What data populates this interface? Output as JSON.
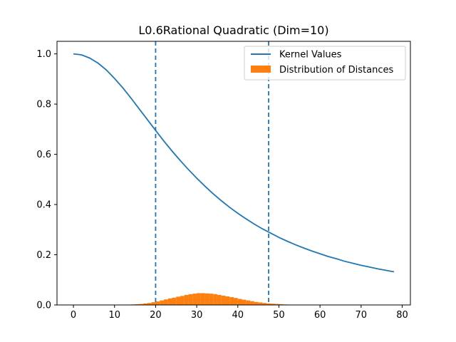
{
  "chart_data": {
    "type": "line",
    "title": "L0.6Rational Quadratic (Dim=10)",
    "xlabel": "",
    "ylabel": "",
    "xlim": [
      -4,
      82
    ],
    "ylim": [
      0,
      1.05
    ],
    "x_ticks": [
      0,
      10,
      20,
      30,
      40,
      50,
      60,
      70,
      80
    ],
    "y_ticks": [
      0.0,
      0.2,
      0.4,
      0.6,
      0.8,
      1.0
    ],
    "grid": false,
    "legend_position": "top-right",
    "series": [
      {
        "name": "Kernel Values",
        "kind": "line",
        "color": "#1f77b4",
        "x": [
          0,
          2,
          4,
          6,
          8,
          10,
          12,
          14,
          16,
          18,
          20,
          22,
          24,
          26,
          28,
          30,
          32,
          34,
          36,
          38,
          40,
          42,
          44,
          46,
          48,
          50,
          52,
          54,
          56,
          58,
          60,
          62,
          64,
          66,
          68,
          70,
          72,
          74,
          76,
          78
        ],
        "values": [
          1.0,
          0.996,
          0.983,
          0.963,
          0.936,
          0.902,
          0.865,
          0.824,
          0.781,
          0.738,
          0.695,
          0.653,
          0.613,
          0.575,
          0.539,
          0.505,
          0.473,
          0.443,
          0.415,
          0.389,
          0.365,
          0.343,
          0.322,
          0.303,
          0.286,
          0.269,
          0.254,
          0.24,
          0.227,
          0.215,
          0.204,
          0.193,
          0.184,
          0.174,
          0.166,
          0.158,
          0.151,
          0.144,
          0.138,
          0.132
        ]
      },
      {
        "name": "Distribution of Distances",
        "kind": "histogram",
        "color": "#ff7f0e",
        "bin_width": 1.0,
        "bin_starts": [
          13,
          14,
          15,
          16,
          17,
          18,
          19,
          20,
          21,
          22,
          23,
          24,
          25,
          26,
          27,
          28,
          29,
          30,
          31,
          32,
          33,
          34,
          35,
          36,
          37,
          38,
          39,
          40,
          41,
          42,
          43,
          44,
          45,
          46,
          47,
          48,
          49,
          50,
          51,
          52,
          53,
          54
        ],
        "values": [
          0.001,
          0.002,
          0.003,
          0.004,
          0.006,
          0.008,
          0.011,
          0.014,
          0.018,
          0.022,
          0.026,
          0.029,
          0.033,
          0.036,
          0.04,
          0.043,
          0.045,
          0.047,
          0.047,
          0.046,
          0.045,
          0.043,
          0.04,
          0.037,
          0.034,
          0.031,
          0.028,
          0.024,
          0.021,
          0.018,
          0.015,
          0.012,
          0.01,
          0.008,
          0.006,
          0.005,
          0.004,
          0.003,
          0.002,
          0.0015,
          0.001,
          0.0005
        ]
      }
    ],
    "vlines": [
      {
        "x": 20,
        "style": "dashed",
        "color": "#1f77b4"
      },
      {
        "x": 47.5,
        "style": "dashed",
        "color": "#1f77b4"
      }
    ]
  }
}
